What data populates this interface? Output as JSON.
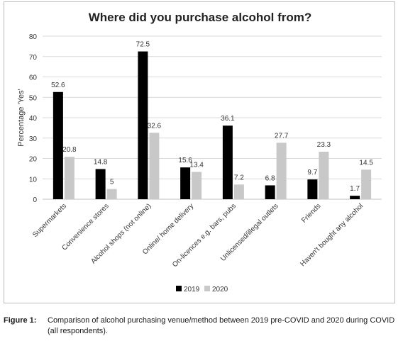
{
  "chart_data": {
    "type": "bar",
    "title": "Where did you purchase alcohol from?",
    "ylabel": "Percentage 'Yes'",
    "xlabel": "",
    "ylim": [
      0,
      80
    ],
    "yticks": [
      0,
      10,
      20,
      30,
      40,
      50,
      60,
      70,
      80
    ],
    "grid": true,
    "legend_position": "bottom-center",
    "categories": [
      "Supermarkets",
      "Convenience stores",
      "Alcohol shops (not online)",
      "Online/ home delivery",
      "On-licences e.g. bars, pubs",
      "Unlicensed/illegal outlets",
      "Friends",
      "Haven't bought any alcohol"
    ],
    "series": [
      {
        "name": "2019",
        "color": "#000000",
        "values": [
          52.6,
          14.8,
          72.5,
          15.6,
          36.1,
          6.8,
          9.7,
          1.7
        ]
      },
      {
        "name": "2020",
        "color": "#c8c8c8",
        "values": [
          20.8,
          5,
          32.6,
          13.4,
          7.2,
          27.7,
          23.3,
          14.5
        ]
      }
    ]
  },
  "caption": {
    "label": "Figure 1:",
    "text": "Comparison of alcohol purchasing venue/method between 2019 pre-COVID and 2020 during COVID (all respondents)."
  }
}
